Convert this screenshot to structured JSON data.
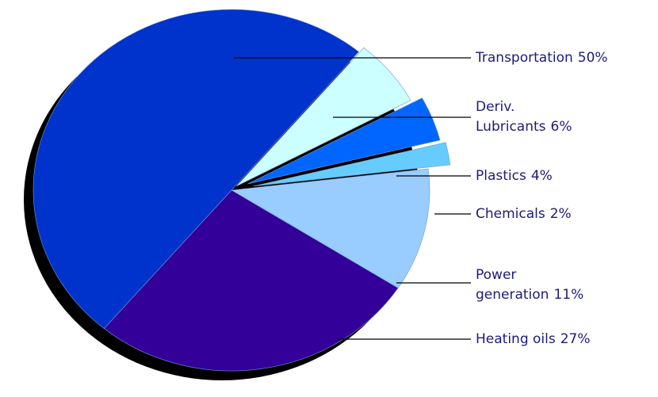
{
  "chart_data": {
    "type": "pie",
    "categories": [
      "Transportation",
      "Deriv. Lubricants",
      "Plastics",
      "Chemicals",
      "Power generation",
      "Heating oils"
    ],
    "values": [
      50,
      6,
      4,
      2,
      11,
      27
    ],
    "value_labels": [
      "50%",
      "6%",
      "4%",
      "2%",
      "11%",
      "27%"
    ],
    "colors": [
      "#0033cc",
      "#ccffff",
      "#0066ff",
      "#66ccff",
      "#99ccff",
      "#330099"
    ]
  }
}
